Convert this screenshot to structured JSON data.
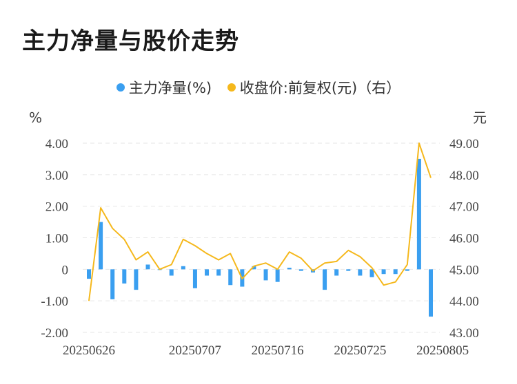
{
  "title": "主力净量与股价走势",
  "legend": [
    {
      "label": "主力净量(%)",
      "color": "#3a9ff0"
    },
    {
      "label": "收盘价:前复权(元)（右）",
      "color": "#f5b81c"
    }
  ],
  "chart_data": {
    "type": "bar+line",
    "left_unit": "%",
    "right_unit": "元",
    "left_ticks": [
      "4.00",
      "3.00",
      "2.00",
      "1.00",
      "0",
      "-1.00",
      "-2.00"
    ],
    "right_ticks": [
      "49.00",
      "48.00",
      "47.00",
      "46.00",
      "45.00",
      "44.00",
      "43.00"
    ],
    "ylim_left": [
      -2,
      4
    ],
    "ylim_right": [
      43,
      49
    ],
    "x_ticks": [
      "20250626",
      "20250707",
      "20250716",
      "20250725",
      "20250805"
    ],
    "x_tick_index": [
      0,
      9,
      16,
      23,
      30
    ],
    "series": [
      {
        "name": "主力净量(%)",
        "type": "bar",
        "color": "#3a9ff0",
        "values": [
          -0.3,
          1.5,
          -0.95,
          -0.45,
          -0.65,
          0.15,
          0.0,
          -0.2,
          0.1,
          -0.6,
          -0.2,
          -0.2,
          -0.5,
          -0.55,
          0.1,
          -0.35,
          -0.4,
          0.05,
          -0.05,
          -0.1,
          -0.65,
          -0.2,
          -0.05,
          -0.2,
          -0.25,
          -0.15,
          -0.15,
          -0.05,
          3.5,
          -1.5
        ]
      },
      {
        "name": "收盘价:前复权(元)（右）",
        "type": "line",
        "color": "#f5b81c",
        "values": [
          44.0,
          46.95,
          46.3,
          45.95,
          45.3,
          45.55,
          45.0,
          45.15,
          45.95,
          45.75,
          45.5,
          45.3,
          45.5,
          44.7,
          45.1,
          45.2,
          45.0,
          45.55,
          45.35,
          44.95,
          45.2,
          45.25,
          45.6,
          45.4,
          45.05,
          44.5,
          44.6,
          45.15,
          49.0,
          47.9
        ]
      }
    ]
  }
}
